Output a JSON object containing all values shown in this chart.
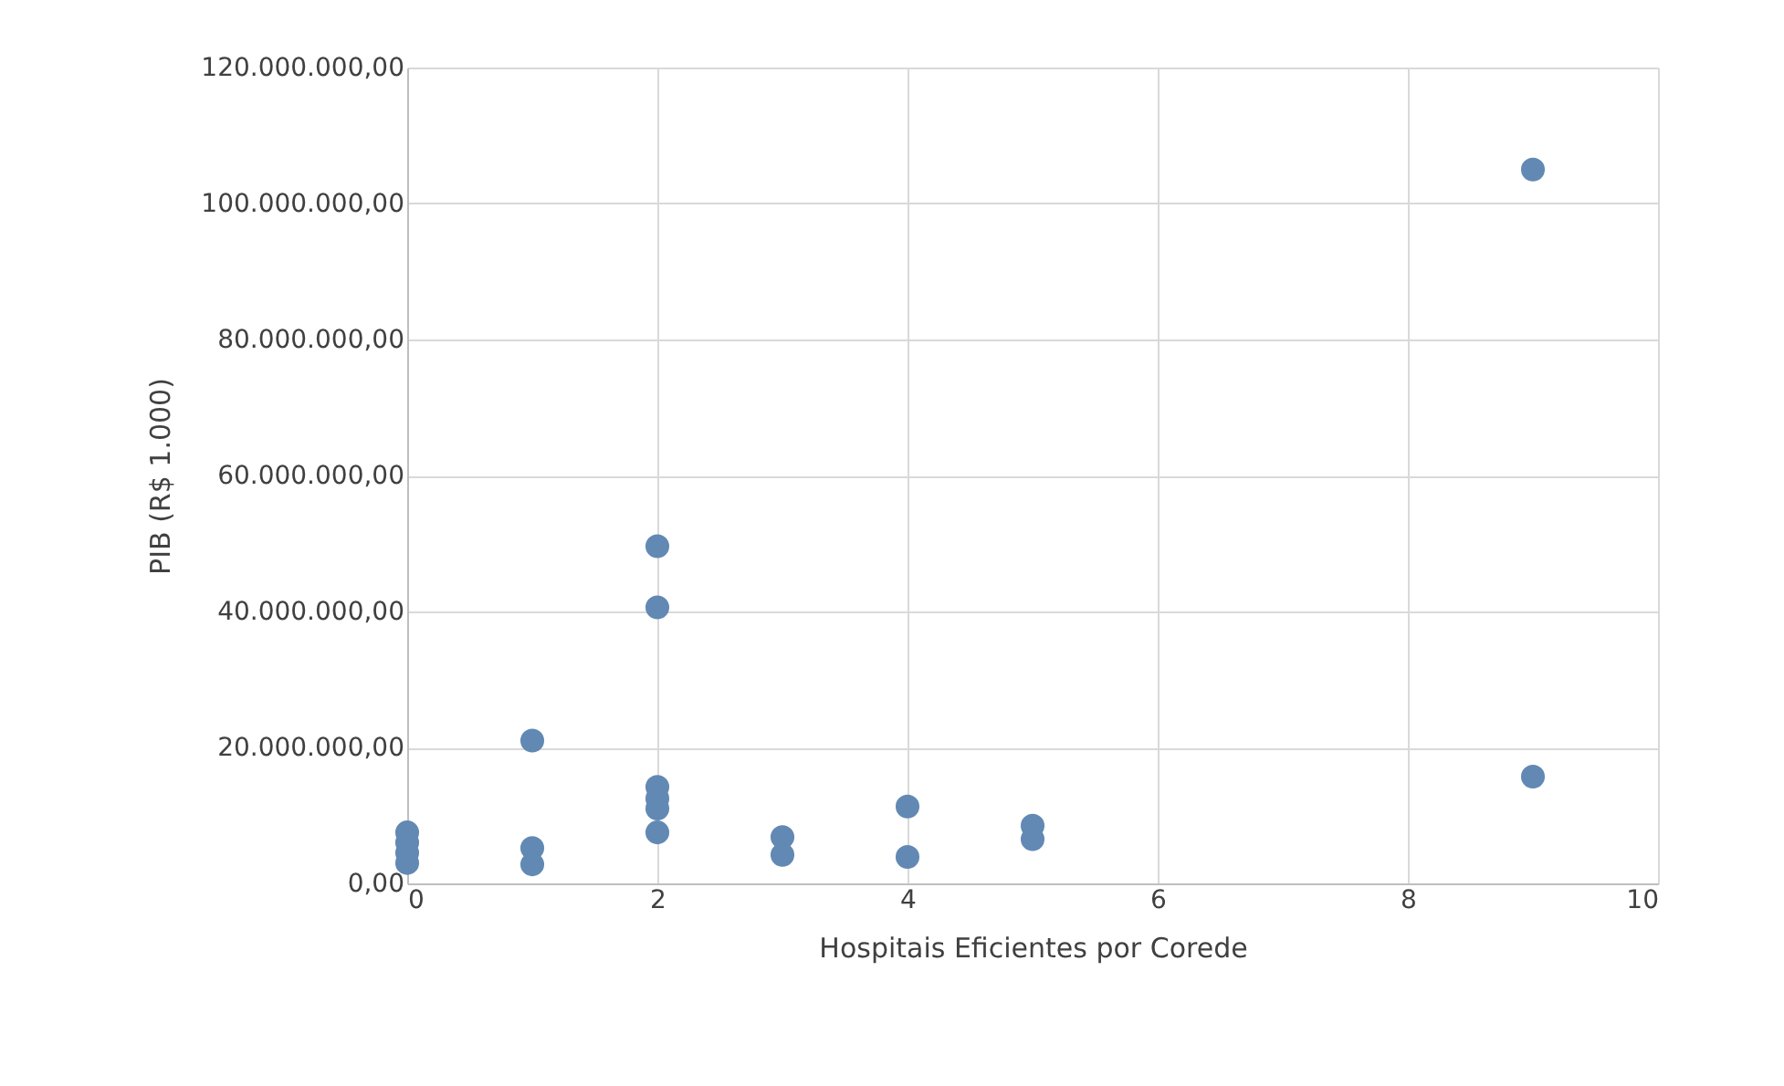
{
  "chart_data": {
    "type": "scatter",
    "xlabel": "Hospitais Eficientes por Corede",
    "ylabel": "PIB (R$ 1.000)",
    "x": [
      0,
      0,
      0,
      0,
      1,
      1,
      1,
      2,
      2,
      2,
      2,
      2,
      2,
      3,
      3,
      4,
      4,
      5,
      5,
      9,
      9
    ],
    "series": [
      {
        "color": "#6289b3",
        "values": [
          7500000,
          6000000,
          4500000,
          3000000,
          21000000,
          5200000,
          2800000,
          49600000,
          40600000,
          14200000,
          12500000,
          11000000,
          7500000,
          6800000,
          4200000,
          11300000,
          3900000,
          8500000,
          6500000,
          105000000,
          15700000
        ]
      }
    ],
    "xlim": [
      0,
      10
    ],
    "xticks": [
      0,
      2,
      4,
      6,
      8,
      10
    ],
    "ylim": [
      0,
      120000000
    ],
    "yticks": [
      {
        "value": 0,
        "label": "0,00"
      },
      {
        "value": 20000000,
        "label": "20.000.000,00"
      },
      {
        "value": 40000000,
        "label": "40.000.000,00"
      },
      {
        "value": 60000000,
        "label": "60.000.000,00"
      },
      {
        "value": 80000000,
        "label": "80.000.000,00"
      },
      {
        "value": 100000000,
        "label": "100.000.000,00"
      },
      {
        "value": 120000000,
        "label": "120.000.000,00"
      }
    ],
    "grid": true,
    "marker": "circle",
    "legend": false
  }
}
